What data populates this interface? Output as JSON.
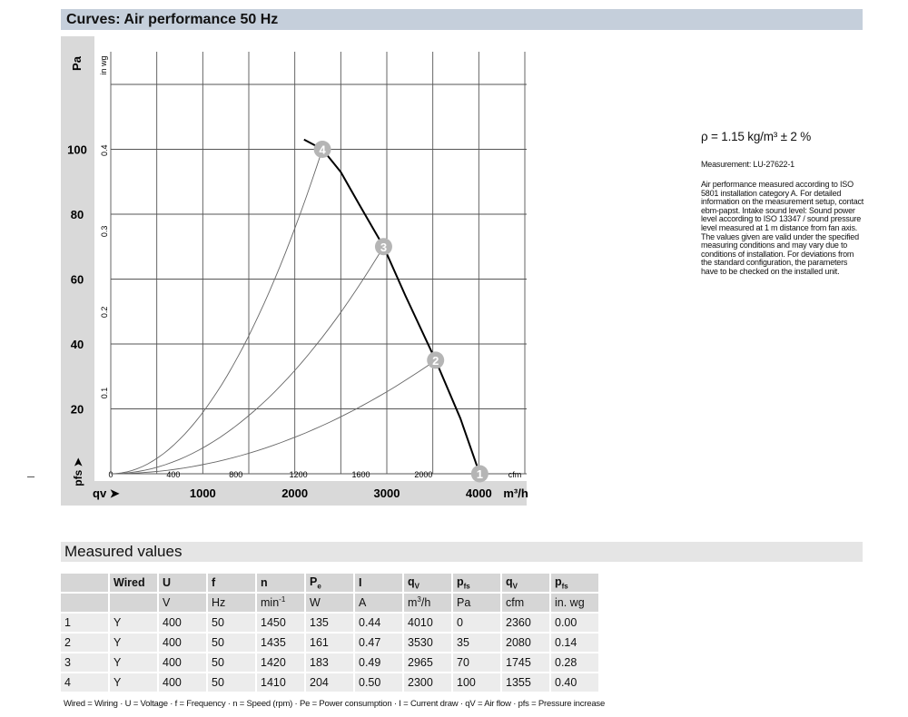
{
  "header": {
    "title": "Curves: Air performance 50 Hz"
  },
  "info": {
    "density": "ρ = 1.15 kg/m³ ± 2 %",
    "measurement": "Measurement: LU-27622-1",
    "note": "Air performance measured according to ISO 5801 installation category A. For detailed information on the measurement setup, contact ebm-papst. Intake sound level: Sound power level according to ISO 13347 / sound pressure level measured at 1 m distance from fan axis. The values given are valid under the specified measuring conditions and may vary due to conditions of installation. For deviations from the standard configuration, the parameters have to be checked on the installed unit."
  },
  "chart_data": {
    "type": "line",
    "ylabel": "Pa",
    "ylabel2": "in wg",
    "ylabel_bottom": "pfs ➤",
    "xlabel": "qv ➤",
    "xunit": "m³/h",
    "xunit2": "cfm",
    "xlim": [
      0,
      4500
    ],
    "ylim": [
      0,
      120
    ],
    "grid": true,
    "yticks": [
      20,
      40,
      60,
      80,
      100
    ],
    "yticks2": [
      "0.1",
      "0.2",
      "0.3",
      "0.4"
    ],
    "xticks": [
      1000,
      2000,
      3000,
      4000
    ],
    "xticks2": [
      "0",
      "400",
      "800",
      "1200",
      "1600",
      "2000"
    ],
    "fan_curve": {
      "x": [
        2100,
        2300,
        2500,
        2700,
        2965,
        3200,
        3530,
        3800,
        4010
      ],
      "y": [
        103,
        100,
        93,
        83,
        70,
        55,
        35,
        17,
        0
      ]
    },
    "operating_points": [
      {
        "label": "1",
        "x": 4010,
        "y": 0
      },
      {
        "label": "2",
        "x": 3530,
        "y": 35
      },
      {
        "label": "3",
        "x": 2965,
        "y": 70
      },
      {
        "label": "4",
        "x": 2300,
        "y": 100
      }
    ],
    "colors": {
      "fan_curve": "#000000",
      "system_curves": "#666666",
      "points": "#b5b5b5",
      "panel": "#d9d9d9"
    }
  },
  "measured": {
    "title": "Measured values",
    "header1": [
      "",
      "Wired",
      "U",
      "f",
      "n",
      "Pe",
      "I",
      "qV",
      "pfs",
      "qV",
      "pfs"
    ],
    "header2": [
      "",
      "",
      "V",
      "Hz",
      "min-1",
      "W",
      "A",
      "m3/h",
      "Pa",
      "cfm",
      "in. wg"
    ],
    "rows": [
      [
        "1",
        "Y",
        "400",
        "50",
        "1450",
        "135",
        "0.44",
        "4010",
        "0",
        "2360",
        "0.00"
      ],
      [
        "2",
        "Y",
        "400",
        "50",
        "1435",
        "161",
        "0.47",
        "3530",
        "35",
        "2080",
        "0.14"
      ],
      [
        "3",
        "Y",
        "400",
        "50",
        "1420",
        "183",
        "0.49",
        "2965",
        "70",
        "1745",
        "0.28"
      ],
      [
        "4",
        "Y",
        "400",
        "50",
        "1410",
        "204",
        "0.50",
        "2300",
        "100",
        "1355",
        "0.40"
      ]
    ],
    "legend": "Wired = Wiring · U = Voltage · f = Frequency · n = Speed (rpm) · Pe = Power consumption · I = Current draw · qV = Air flow · pfs = Pressure increase"
  }
}
